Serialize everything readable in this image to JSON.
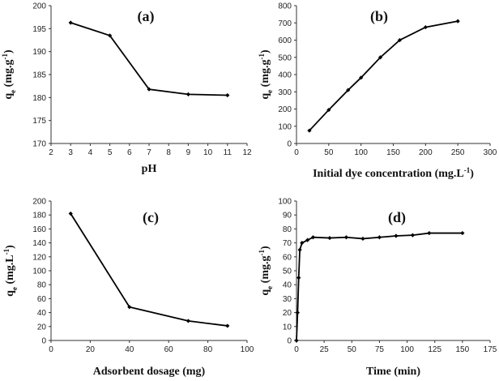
{
  "chart_data": [
    {
      "type": "line",
      "panel_label": "(a)",
      "title": "(a)",
      "xlabel": "pH",
      "ylabel_main": "q",
      "ylabel_sub": "e",
      "ylabel_units": " (mg.g",
      "ylabel_sup": "-1",
      "ylabel_close": ")",
      "xlim": [
        2,
        12
      ],
      "ylim": [
        170,
        200
      ],
      "xticks": [
        2,
        3,
        4,
        5,
        6,
        7,
        8,
        9,
        10,
        11,
        12
      ],
      "yticks": [
        170,
        175,
        180,
        185,
        190,
        195,
        200
      ],
      "x": [
        3,
        5,
        7,
        9,
        11
      ],
      "y": [
        196.3,
        193.5,
        181.8,
        180.7,
        180.5
      ]
    },
    {
      "type": "line",
      "panel_label": "(b)",
      "title": "(b)",
      "xlabel": "Initial dye concentration (mg.L",
      "xlabel_sup": "-1",
      "xlabel_close": ")",
      "ylabel_main": "q",
      "ylabel_sub": "e",
      "ylabel_units": " (mg.g",
      "ylabel_sup": "-1",
      "ylabel_close": ")",
      "xlim": [
        0,
        300
      ],
      "ylim": [
        0,
        800
      ],
      "xticks": [
        0,
        50,
        100,
        150,
        200,
        250,
        300
      ],
      "yticks": [
        0,
        100,
        200,
        300,
        400,
        500,
        600,
        700,
        800
      ],
      "x": [
        20,
        50,
        80,
        100,
        130,
        160,
        200,
        250
      ],
      "y": [
        75,
        195,
        310,
        382,
        500,
        600,
        675,
        710
      ]
    },
    {
      "type": "line",
      "panel_label": "(c)",
      "title": "(c)",
      "xlabel": "Adsorbent dosage (mg)",
      "ylabel_main": "q",
      "ylabel_sub": "e",
      "ylabel_units": " (mg.L",
      "ylabel_sup": "-1",
      "ylabel_close": ")",
      "xlim": [
        0,
        100
      ],
      "ylim": [
        0,
        200
      ],
      "xticks": [
        0,
        20,
        40,
        60,
        80,
        100
      ],
      "yticks": [
        0,
        20,
        40,
        60,
        80,
        100,
        120,
        140,
        160,
        180,
        200
      ],
      "x": [
        10,
        40,
        70,
        90
      ],
      "y": [
        182,
        48,
        28,
        21
      ]
    },
    {
      "type": "line",
      "panel_label": "(d)",
      "title": "(d)",
      "xlabel": "Time (min)",
      "ylabel_main": "q",
      "ylabel_sub": "e",
      "ylabel_units": " (mg.g",
      "ylabel_sup": "-1",
      "ylabel_close": ")",
      "xlim": [
        0,
        175
      ],
      "ylim": [
        0,
        100
      ],
      "xticks": [
        0,
        25,
        50,
        75,
        100,
        125,
        150,
        175
      ],
      "yticks": [
        0,
        10,
        20,
        30,
        40,
        50,
        60,
        70,
        80,
        90,
        100
      ],
      "x": [
        0,
        1,
        2,
        3,
        5,
        10,
        15,
        30,
        45,
        60,
        75,
        90,
        105,
        120,
        150
      ],
      "y": [
        0,
        20,
        45,
        65,
        70,
        72,
        74,
        73.5,
        74,
        73,
        74,
        75,
        75.5,
        77,
        77
      ]
    }
  ]
}
